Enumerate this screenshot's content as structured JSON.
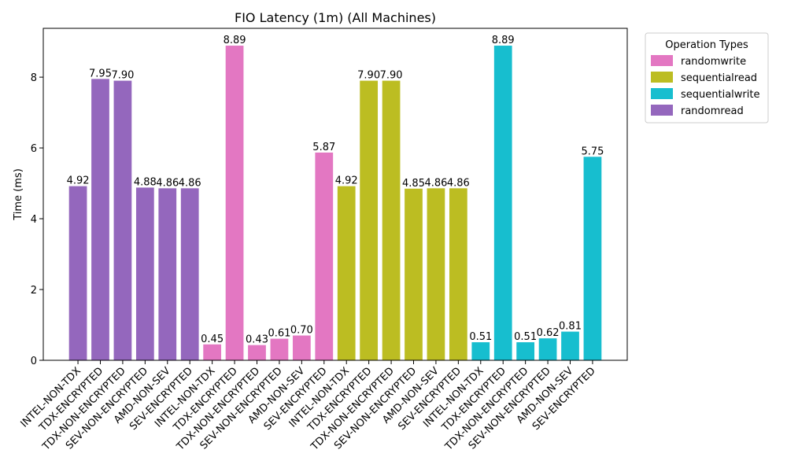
{
  "chart_data": {
    "type": "bar",
    "title": "FIO Latency (1m) (All Machines)",
    "y_label": "Time (ms)",
    "legend_title": "Operation Types",
    "legend_position": "outside upper right",
    "categories": [
      "INTEL-NON-TDX",
      "TDX-ENCRYPTED",
      "TDX-NON-ENCRYPTED",
      "SEV-NON-ENCRYPTED",
      "AMD-NON-SEV",
      "SEV-ENCRYPTED",
      "INTEL-NON-TDX",
      "TDX-ENCRYPTED",
      "TDX-NON-ENCRYPTED",
      "SEV-NON-ENCRYPTED",
      "AMD-NON-SEV",
      "SEV-ENCRYPTED",
      "INTEL-NON-TDX",
      "TDX-ENCRYPTED",
      "TDX-NON-ENCRYPTED",
      "SEV-NON-ENCRYPTED",
      "AMD-NON-SEV",
      "SEV-ENCRYPTED",
      "INTEL-NON-TDX",
      "TDX-ENCRYPTED",
      "TDX-NON-ENCRYPTED",
      "SEV-NON-ENCRYPTED",
      "AMD-NON-SEV",
      "SEV-ENCRYPTED"
    ],
    "series": [
      {
        "name": "randomwrite",
        "color": "#e377c2",
        "values": [
          null,
          null,
          null,
          null,
          null,
          null,
          0.45,
          8.89,
          0.43,
          0.61,
          0.7,
          5.87,
          null,
          null,
          null,
          null,
          null,
          null,
          null,
          null,
          null,
          null,
          null,
          null
        ],
        "value_labels": [
          null,
          null,
          null,
          null,
          null,
          null,
          "0.45",
          "8.89",
          "0.43",
          "0.61",
          "0.70",
          "5.87",
          null,
          null,
          null,
          null,
          null,
          null,
          null,
          null,
          null,
          null,
          null,
          null
        ]
      },
      {
        "name": "sequentialread",
        "color": "#bcbd22",
        "values": [
          null,
          null,
          null,
          null,
          null,
          null,
          null,
          null,
          null,
          null,
          null,
          null,
          4.92,
          7.9,
          7.9,
          4.85,
          4.86,
          4.86,
          null,
          null,
          null,
          null,
          null,
          null
        ],
        "value_labels": [
          null,
          null,
          null,
          null,
          null,
          null,
          null,
          null,
          null,
          null,
          null,
          null,
          "4.92",
          "7.90",
          "7.90",
          "4.85",
          "4.86",
          "4.86",
          null,
          null,
          null,
          null,
          null,
          null
        ]
      },
      {
        "name": "sequentialwrite",
        "color": "#17becf",
        "values": [
          null,
          null,
          null,
          null,
          null,
          null,
          null,
          null,
          null,
          null,
          null,
          null,
          null,
          null,
          null,
          null,
          null,
          null,
          0.51,
          8.89,
          0.51,
          0.62,
          0.81,
          5.75
        ],
        "value_labels": [
          null,
          null,
          null,
          null,
          null,
          null,
          null,
          null,
          null,
          null,
          null,
          null,
          null,
          null,
          null,
          null,
          null,
          null,
          "0.51",
          "8.89",
          "0.51",
          "0.62",
          "0.81",
          "5.75"
        ]
      },
      {
        "name": "randomread",
        "color": "#9467bd",
        "values": [
          4.92,
          7.95,
          7.9,
          4.88,
          4.86,
          4.86,
          null,
          null,
          null,
          null,
          null,
          null,
          null,
          null,
          null,
          null,
          null,
          null,
          null,
          null,
          null,
          null,
          null,
          null
        ],
        "value_labels": [
          "4.92",
          "7.95",
          "7.90",
          "4.88",
          "4.86",
          "4.86",
          null,
          null,
          null,
          null,
          null,
          null,
          null,
          null,
          null,
          null,
          null,
          null,
          null,
          null,
          null,
          null,
          null,
          null
        ]
      }
    ],
    "ylim": [
      0,
      9.38
    ],
    "yticks": [
      0,
      2,
      4,
      6,
      8
    ],
    "grid": false
  }
}
